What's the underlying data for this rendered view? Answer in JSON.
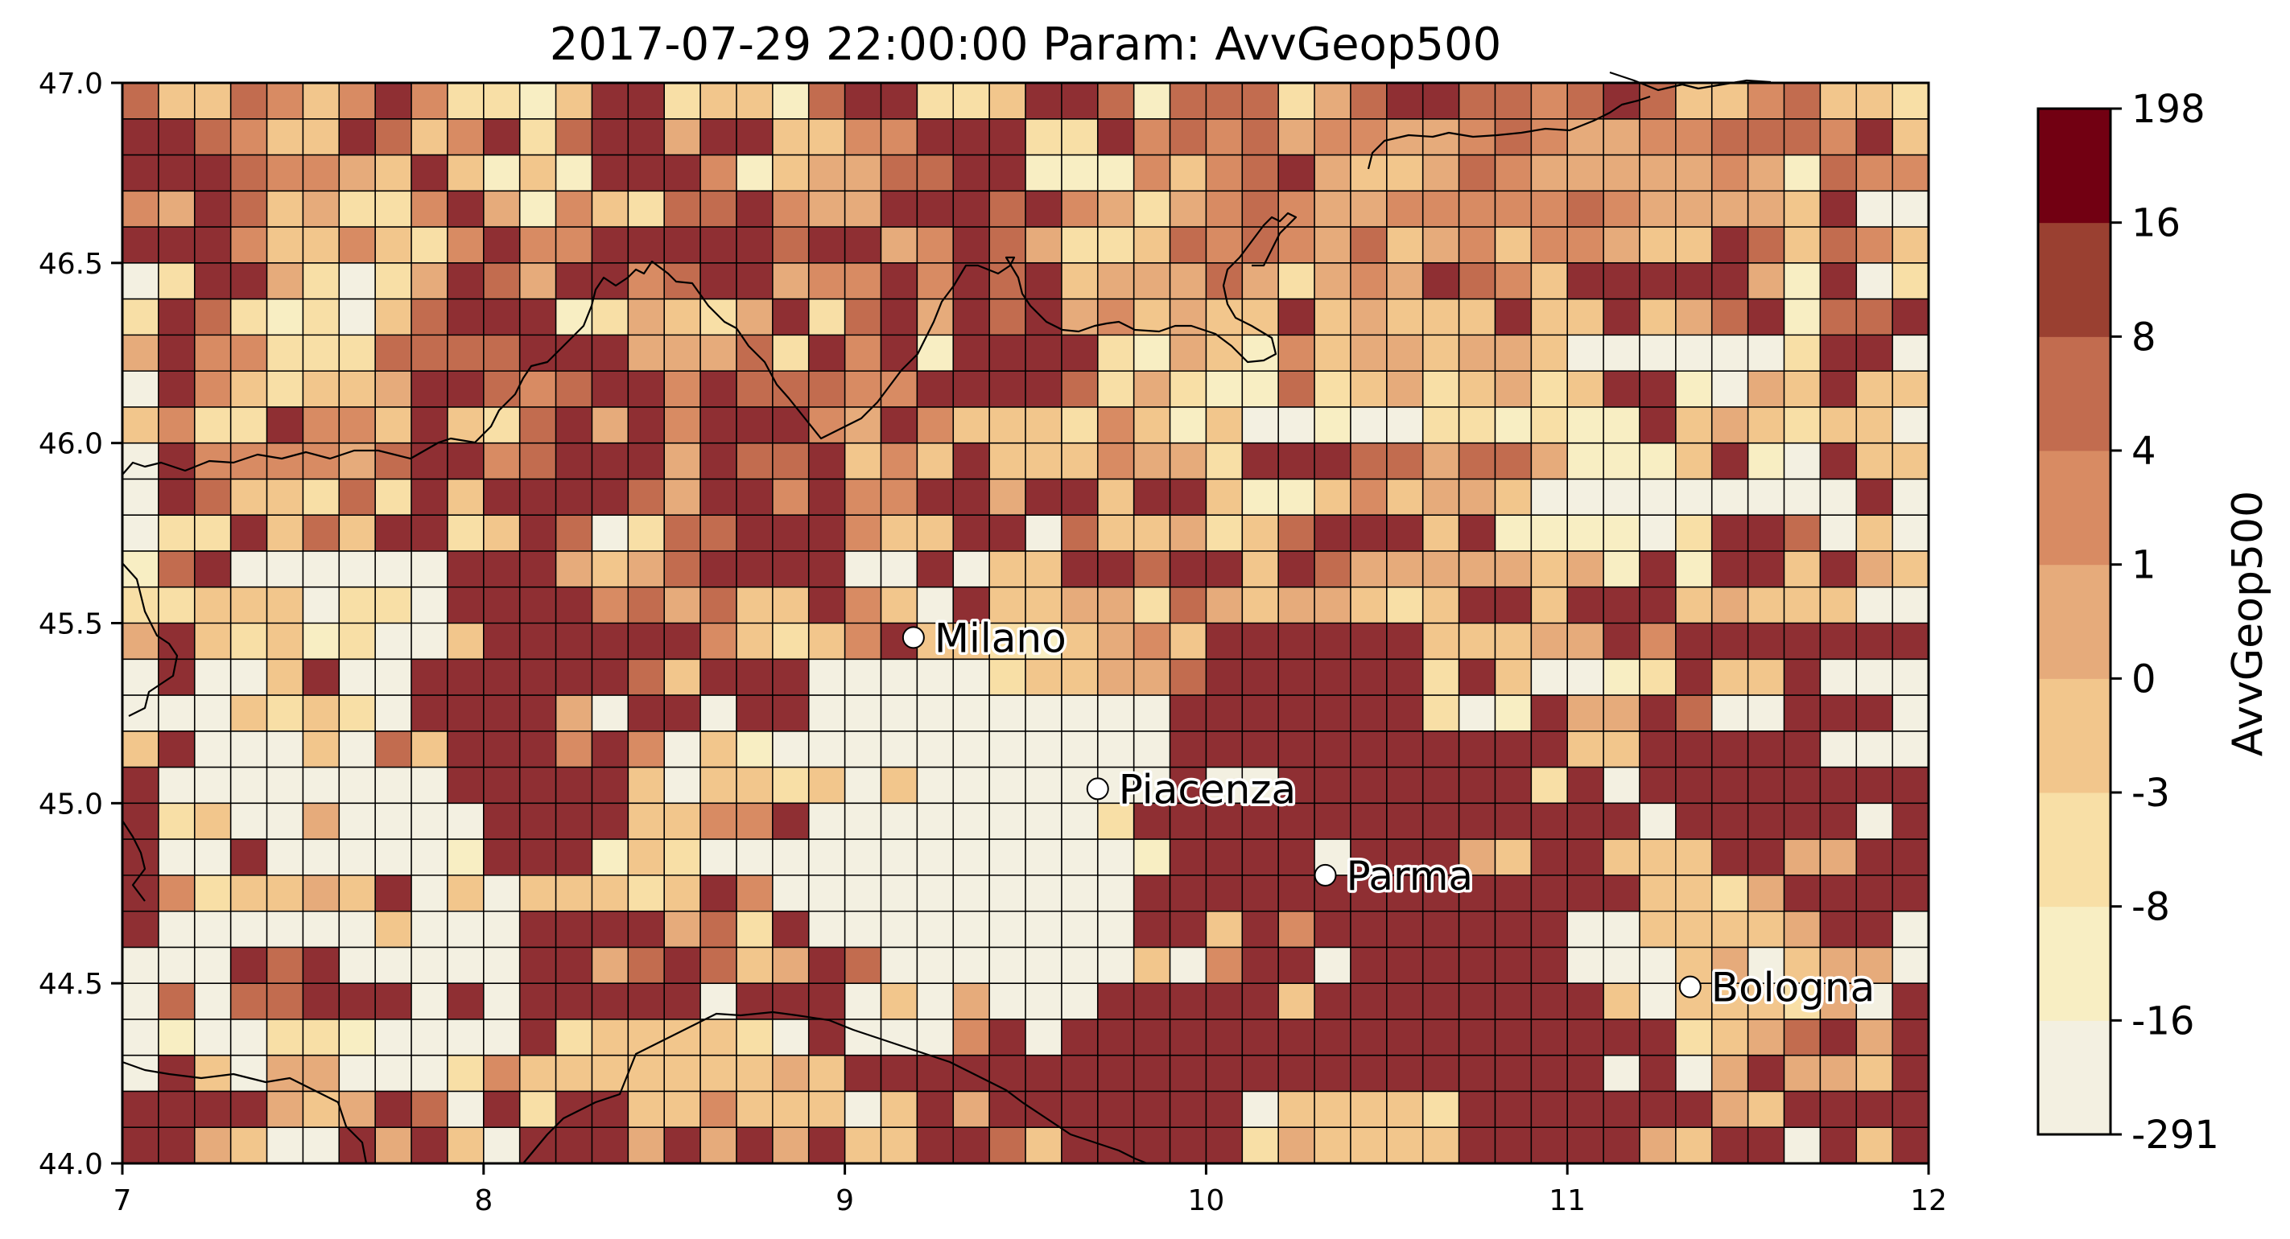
{
  "chart_data": {
    "type": "heatmap",
    "title": "2017-07-29 22:00:00 Param: AvvGeop500",
    "xlabel": "",
    "ylabel": "",
    "xlim": [
      7,
      12
    ],
    "ylim": [
      44,
      47
    ],
    "x_ticks": [
      "7",
      "8",
      "9",
      "10",
      "11",
      "12"
    ],
    "y_ticks": [
      "44.0",
      "44.5",
      "45.0",
      "45.5",
      "46.0",
      "46.5",
      "47.0"
    ],
    "grid": {
      "cols": 50,
      "rows": 30,
      "cell_deg": 0.1
    },
    "colorbar": {
      "label": "AvvGeop500",
      "boundaries": [
        "-291",
        "-16",
        "-8",
        "-3",
        "0",
        "1",
        "4",
        "8",
        "16",
        "198"
      ],
      "colors": [
        "#f3f0e1",
        "#f8eec3",
        "#f8dfa6",
        "#f2c68c",
        "#e6ab7b",
        "#d88b63",
        "#c26c4f",
        "#9a4031",
        "#720012"
      ]
    },
    "cities": [
      {
        "name": "Milano",
        "lon": 9.19,
        "lat": 45.46
      },
      {
        "name": "Piacenza",
        "lon": 9.7,
        "lat": 45.04
      },
      {
        "name": "Parma",
        "lon": 10.33,
        "lat": 44.8
      },
      {
        "name": "Bologna",
        "lon": 11.34,
        "lat": 44.49
      }
    ],
    "heatmap_colors": [
      "#f3f0e1",
      "#f8eec3",
      "#f8dfa6",
      "#f2c68c",
      "#e6ab7b",
      "#d88b63",
      "#c26c4f",
      "#8f2f33"
    ],
    "cells": [
      "63365357522137723316772237761666246776656763356332",
      "77653376357267747733557772275656455445654455666573",
      "77765543731317775134466771115356743346544444541655",
      "54763422574153266754477767542456544555556544443700",
      "77753353257557777767745764223656546345355433763653",
      "02774202476477567745575767344464245476537777741702",
      "27621203677712432472674767453433734333733734671667",
      "47552226666777444627571777721431534434430000002770",
      "07532334776567757666557777624211623423423771043733",
      "35227553732674757775475333253130010022121173432330",
      "07555546775677747667353733354427776646641113710733",
      "07633262737777647757557747737731135344300000000070",
      "02273637723760266777533770633423677737111102776030",
      "16700000077743467777007033776773764444434171773743",
      "22333022077775646337530733442643443237737773433300",
      "47323120037777775323573321345377777733344757777777",
      "07003700777777637770000023344677777727300127337000",
      "00032320777740770770000000000777777720174476007770",
      "37000306377757503100000000000777777777773377777000",
      "70000000077777303323030000000700777777727077777777",
      "72300400007777335570000000027777777777777707777707",
      "70070000017771320000000000001777707774377333774477",
      "75233437030333237500000000007777777777777733247777",
      "70000003000777746270000000007737577777770033334770",
      "00076700000774676347600000003057707777770003403440",
      "06066777070777770777030400077777377777777303332407",
      "01002210000723333207000570777777777777777772346747",
      "07304400025333333343777777777777777777777070474437",
      "77774347607277335333037477777770333327777777437777",
      "77430074730777474747337763777772433337777743770737"
    ]
  }
}
